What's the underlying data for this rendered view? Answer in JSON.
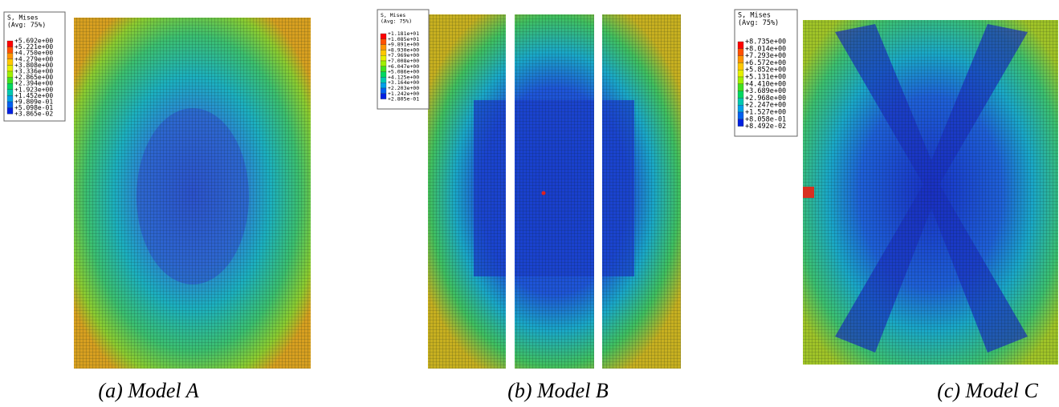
{
  "panels": [
    {
      "legend": {
        "title": "S, Mises",
        "average": "(Avg: 75%)",
        "values": [
          "+5.692e+00",
          "+5.221e+00",
          "+4.750e+00",
          "+4.279e+00",
          "+3.808e+00",
          "+3.336e+00",
          "+2.865e+00",
          "+2.394e+00",
          "+1.923e+00",
          "+1.452e+00",
          "+9.809e-01",
          "+5.098e-01",
          "+3.865e-02"
        ]
      },
      "caption": "(a) Model A"
    },
    {
      "legend": {
        "title": "S, Mises",
        "average": "(Avg: 75%)",
        "values": [
          "+1.181e+01",
          "+1.085e+01",
          "+9.891e+00",
          "+8.930e+00",
          "+7.969e+00",
          "+7.008e+00",
          "+6.047e+00",
          "+5.086e+00",
          "+4.125e+00",
          "+3.164e+00",
          "+2.203e+00",
          "+1.242e+00",
          "+2.805e-01"
        ]
      },
      "caption": "(b) Model B"
    },
    {
      "legend": {
        "title": "S, Mises",
        "average": "(Avg: 75%)",
        "values": [
          "+8.735e+00",
          "+8.014e+00",
          "+7.293e+00",
          "+6.572e+00",
          "+5.852e+00",
          "+5.131e+00",
          "+4.410e+00",
          "+3.689e+00",
          "+2.968e+00",
          "+2.247e+00",
          "+1.527e+00",
          "+8.058e-01",
          "+8.492e-02"
        ]
      },
      "caption": "(c) Model C"
    }
  ]
}
